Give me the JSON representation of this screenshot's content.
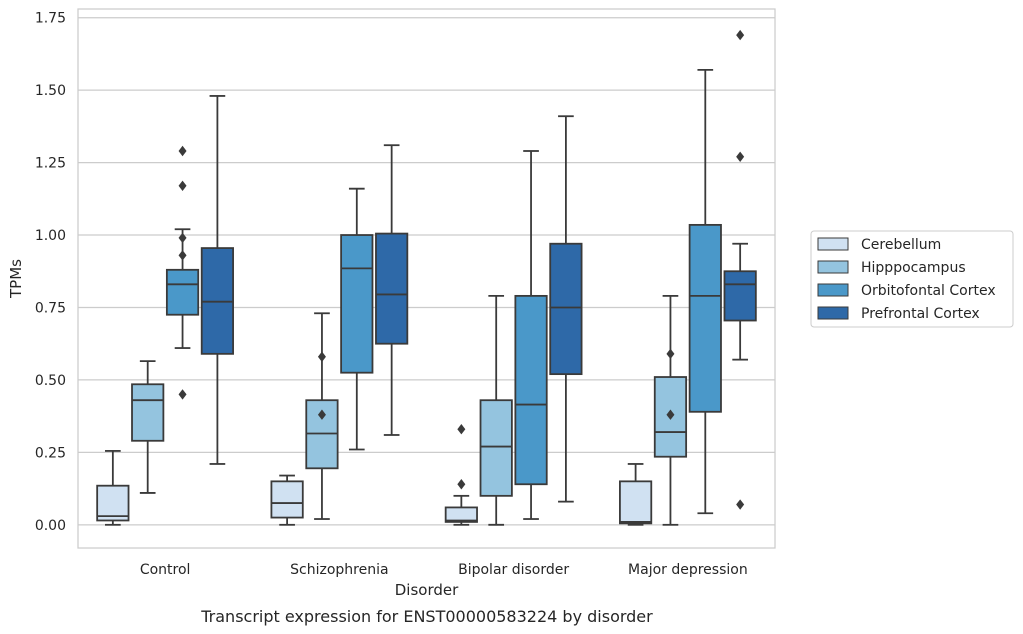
{
  "chart_data": {
    "type": "box",
    "xlabel": "Disorder",
    "ylabel": "TPMs",
    "caption": "Transcript expression for ENST00000583224 by disorder",
    "categories": [
      "Control",
      "Schizophrenia",
      "Bipolar disorder",
      "Major depression"
    ],
    "ylim": [
      -0.08,
      1.78
    ],
    "yticks": [
      0.0,
      0.25,
      0.5,
      0.75,
      1.0,
      1.25,
      1.5,
      1.75
    ],
    "ytick_labels": [
      "0.00",
      "0.25",
      "0.50",
      "0.75",
      "1.00",
      "1.25",
      "1.50",
      "1.75"
    ],
    "grid": "horizontal",
    "legend_position": "right",
    "series": [
      {
        "name": "Cerebellum",
        "color": "#d0e1f2",
        "boxes": [
          {
            "whislo": 0.0,
            "q1": 0.015,
            "med": 0.03,
            "q3": 0.135,
            "whishi": 0.255,
            "fliers": []
          },
          {
            "whislo": 0.0,
            "q1": 0.025,
            "med": 0.075,
            "q3": 0.15,
            "whishi": 0.17,
            "fliers": []
          },
          {
            "whislo": 0.0,
            "q1": 0.01,
            "med": 0.015,
            "q3": 0.06,
            "whishi": 0.1,
            "fliers": [
              0.14,
              0.33
            ]
          },
          {
            "whislo": 0.0,
            "q1": 0.005,
            "med": 0.01,
            "q3": 0.15,
            "whishi": 0.21,
            "fliers": []
          }
        ]
      },
      {
        "name": "Hipppocampus",
        "color": "#94c4df",
        "boxes": [
          {
            "whislo": 0.11,
            "q1": 0.29,
            "med": 0.43,
            "q3": 0.485,
            "whishi": 0.565,
            "fliers": []
          },
          {
            "whislo": 0.02,
            "q1": 0.195,
            "med": 0.315,
            "q3": 0.43,
            "whishi": 0.73,
            "fliers": [
              0.38,
              0.58
            ]
          },
          {
            "whislo": 0.0,
            "q1": 0.1,
            "med": 0.27,
            "q3": 0.43,
            "whishi": 0.79,
            "fliers": []
          },
          {
            "whislo": 0.0,
            "q1": 0.235,
            "med": 0.32,
            "q3": 0.51,
            "whishi": 0.79,
            "fliers": [
              0.38,
              0.59
            ]
          }
        ]
      },
      {
        "name": "Orbitofontal Cortex",
        "color": "#4a98c9",
        "boxes": [
          {
            "whislo": 0.61,
            "q1": 0.725,
            "med": 0.83,
            "q3": 0.88,
            "whishi": 1.02,
            "fliers": [
              0.45,
              0.93,
              0.99,
              1.17,
              1.29
            ]
          },
          {
            "whislo": 0.26,
            "q1": 0.525,
            "med": 0.885,
            "q3": 1.0,
            "whishi": 1.16,
            "fliers": []
          },
          {
            "whislo": 0.02,
            "q1": 0.14,
            "med": 0.415,
            "q3": 0.79,
            "whishi": 1.29,
            "fliers": []
          },
          {
            "whislo": 0.04,
            "q1": 0.39,
            "med": 0.79,
            "q3": 1.035,
            "whishi": 1.57,
            "fliers": []
          }
        ]
      },
      {
        "name": "Prefrontal Cortex",
        "color": "#2e69a8",
        "boxes": [
          {
            "whislo": 0.21,
            "q1": 0.59,
            "med": 0.77,
            "q3": 0.955,
            "whishi": 1.48,
            "fliers": []
          },
          {
            "whislo": 0.31,
            "q1": 0.625,
            "med": 0.795,
            "q3": 1.005,
            "whishi": 1.31,
            "fliers": []
          },
          {
            "whislo": 0.08,
            "q1": 0.52,
            "med": 0.75,
            "q3": 0.97,
            "whishi": 1.41,
            "fliers": []
          },
          {
            "whislo": 0.57,
            "q1": 0.705,
            "med": 0.83,
            "q3": 0.875,
            "whishi": 0.97,
            "fliers": [
              0.07,
              1.27,
              1.69
            ]
          }
        ]
      }
    ]
  }
}
